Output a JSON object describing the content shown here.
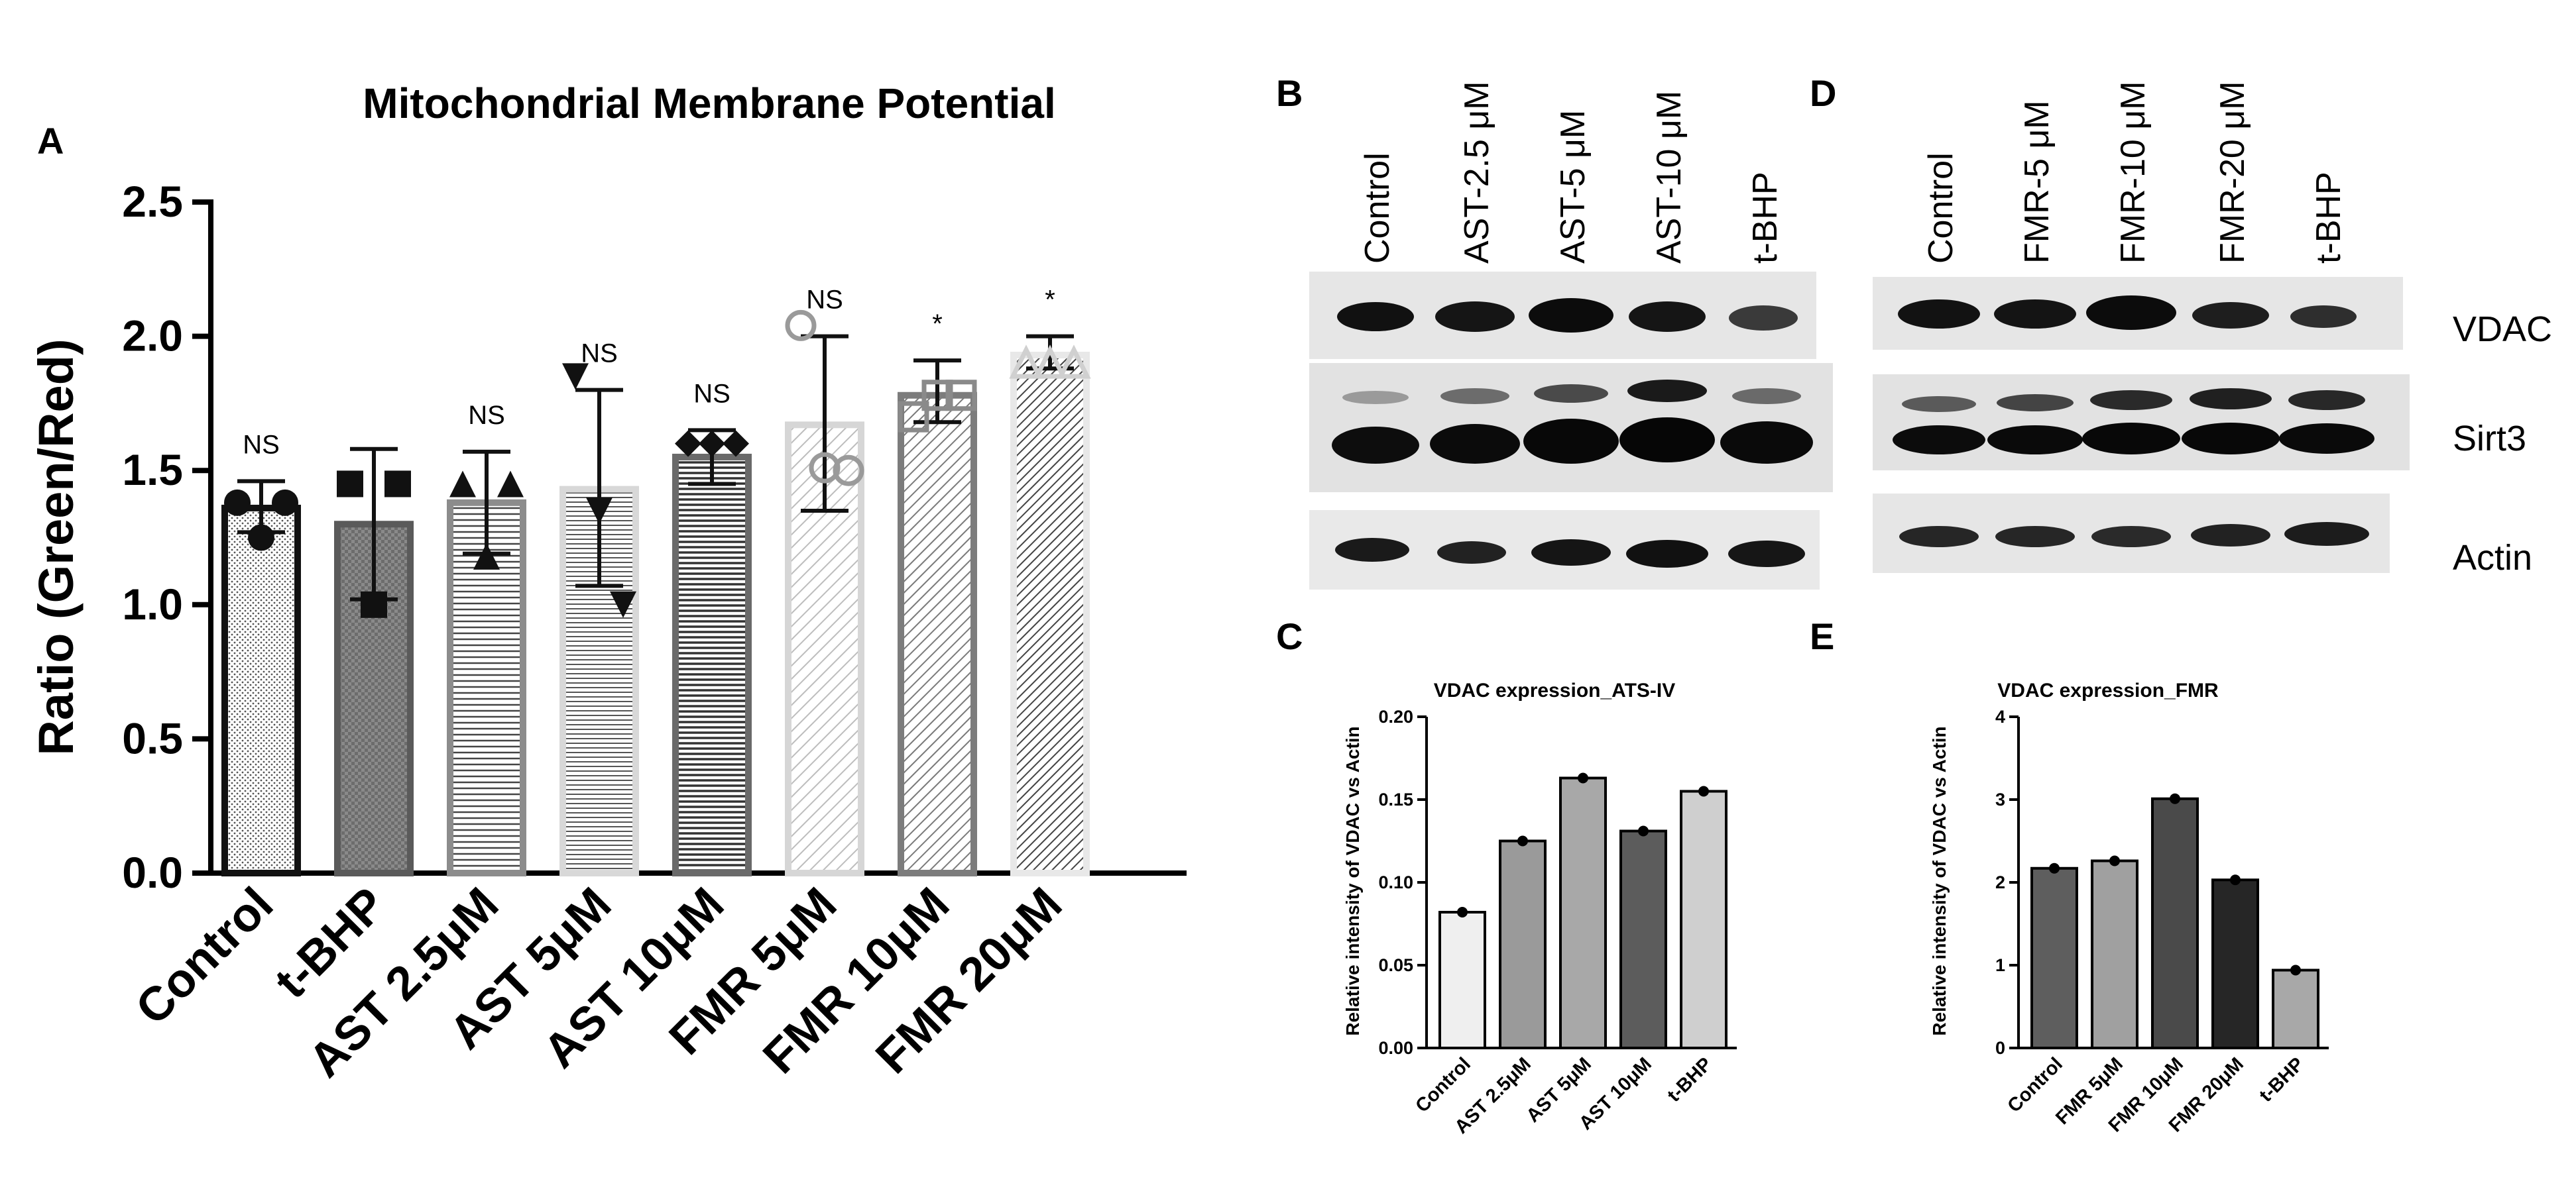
{
  "panels": {
    "A": "A",
    "B": "B",
    "C": "C",
    "D": "D",
    "E": "E"
  },
  "chart_data": [
    {
      "id": "A",
      "type": "bar",
      "title": "Mitochondrial Membrane Potential",
      "ylabel": "Ratio (Green/Red)",
      "xlabel": "",
      "ylim": [
        0,
        2.5
      ],
      "yticks": [
        "0.0",
        "0.5",
        "1.0",
        "1.5",
        "2.0",
        "2.5"
      ],
      "categories": [
        "Control",
        "t-BHP",
        "AST 2.5μM",
        "AST 5μM",
        "AST 10μM",
        "FMR 5μM",
        "FMR 10μM",
        "FMR 20μM"
      ],
      "values": [
        1.36,
        1.3,
        1.38,
        1.43,
        1.55,
        1.67,
        1.78,
        1.93
      ],
      "error": [
        [
          1.27,
          1.46
        ],
        [
          1.02,
          1.58
        ],
        [
          1.19,
          1.57
        ],
        [
          1.07,
          1.8
        ],
        [
          1.45,
          1.65
        ],
        [
          1.35,
          2.0
        ],
        [
          1.68,
          1.91
        ],
        [
          1.88,
          2.0
        ]
      ],
      "points": [
        [
          1.38,
          1.38,
          1.25
        ],
        [
          1.45,
          1.45,
          1.0
        ],
        [
          1.45,
          1.45,
          1.18
        ],
        [
          1.85,
          1.0,
          1.35
        ],
        [
          1.6,
          1.6,
          1.6
        ],
        [
          2.04,
          1.5,
          1.51
        ],
        [
          1.7,
          1.78,
          1.78
        ],
        [
          1.9,
          1.9,
          1.9
        ]
      ],
      "markers": [
        "circle",
        "square",
        "triangle",
        "triangle-down",
        "diamond",
        "circle-open",
        "square-open",
        "triangle-open"
      ],
      "significance": [
        "NS",
        "",
        "NS",
        "NS",
        "NS",
        "NS",
        "*",
        "*"
      ]
    },
    {
      "id": "C",
      "type": "bar",
      "title": "VDAC expression_ATS-IV",
      "ylabel": "Relative intensity of VDAC vs Actin",
      "xlabel": "",
      "ylim": [
        0,
        0.2
      ],
      "yticks": [
        "0.00",
        "0.05",
        "0.10",
        "0.15",
        "0.20"
      ],
      "categories": [
        "Control",
        "AST 2.5μM",
        "AST 5μM",
        "AST 10μM",
        "t-BHP"
      ],
      "values": [
        0.082,
        0.125,
        0.163,
        0.131,
        0.155
      ],
      "colors": [
        "#efefef",
        "#9a9a9a",
        "#a8a8a8",
        "#5c5c5c",
        "#cfcfcf"
      ]
    },
    {
      "id": "E",
      "type": "bar",
      "title": "VDAC expression_FMR",
      "ylabel": "Relative intensity of VDAC vs Actin",
      "xlabel": "",
      "ylim": [
        0,
        4
      ],
      "yticks": [
        "0",
        "1",
        "2",
        "3",
        "4"
      ],
      "categories": [
        "Control",
        "FMR 5μM",
        "FMR 10μM",
        "FMR 20μM",
        "t-BHP"
      ],
      "values": [
        2.17,
        2.26,
        3.01,
        2.03,
        0.94
      ],
      "colors": [
        "#5e5e5e",
        "#a0a0a0",
        "#4a4a4a",
        "#262626",
        "#a8a8a8"
      ]
    }
  ],
  "blots": {
    "B": {
      "lanes": [
        "Control",
        "AST-2.5 μM",
        "AST-5 μM",
        "AST-10 μM",
        "t-BHP"
      ]
    },
    "D": {
      "lanes": [
        "Control",
        "FMR-5 μM",
        "FMR-10 μM",
        "FMR-20 μM",
        "t-BHP"
      ],
      "proteins": [
        "VDAC",
        "Sirt3",
        "Actin"
      ]
    }
  }
}
